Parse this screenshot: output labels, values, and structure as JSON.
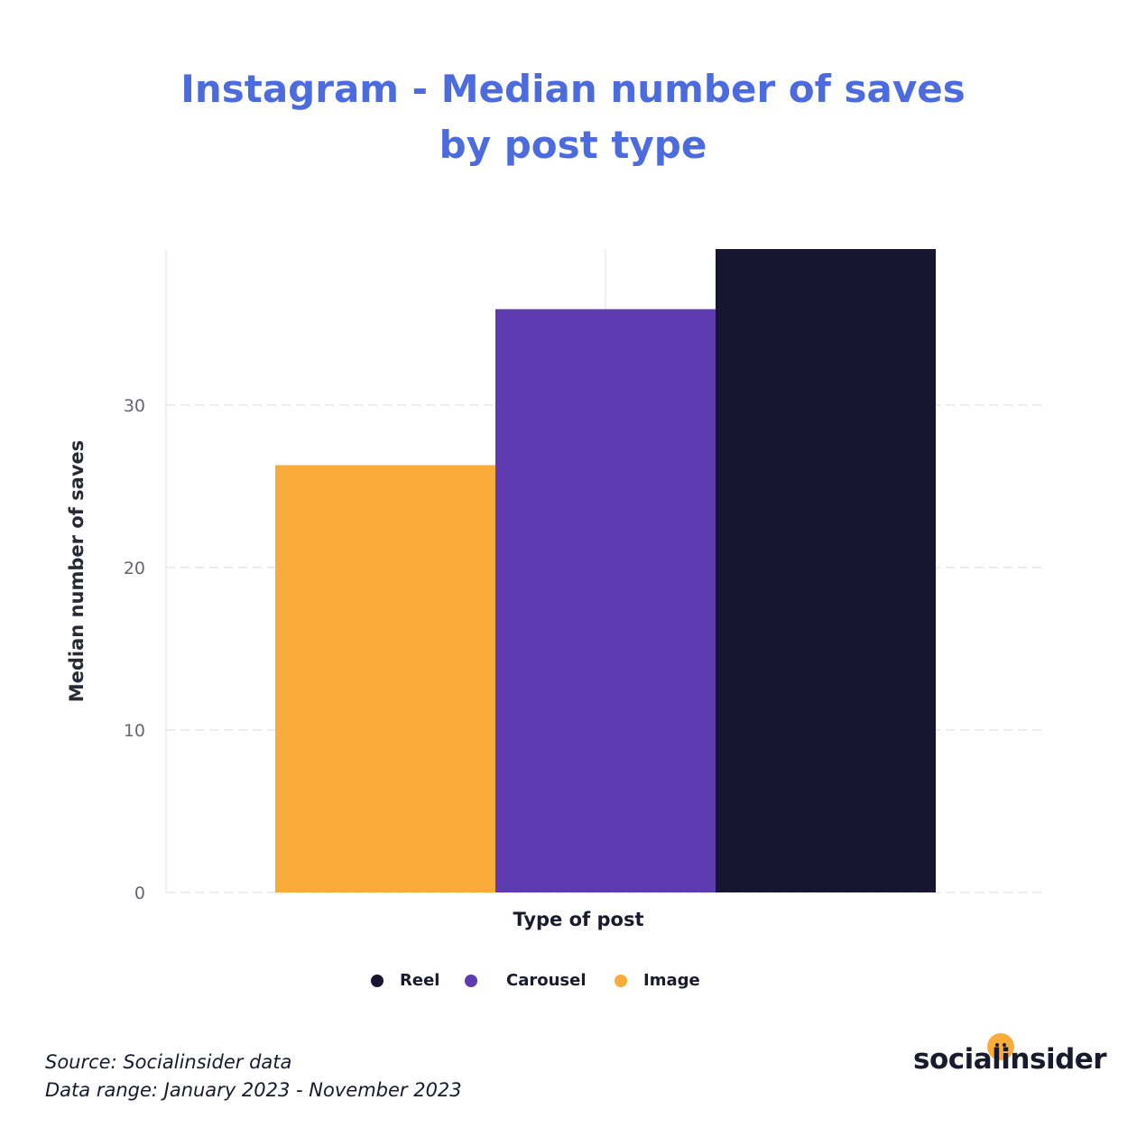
{
  "title_lines": [
    "Instagram - Median number of saves",
    "by post type"
  ],
  "chart_data": {
    "type": "bar",
    "categories": [
      "Image",
      "Carousel",
      "Reel"
    ],
    "values": [
      26.3,
      35.9,
      39.6
    ],
    "colors": [
      "#f9ac3a",
      "#5e3bb0",
      "#181530"
    ],
    "title": "Instagram - Median number of saves by post type",
    "xlabel": "Type of post",
    "ylabel": "Median number of saves",
    "ylim": [
      0,
      39.6
    ],
    "yticks": [
      0,
      10,
      20,
      30
    ],
    "grid": true,
    "legend_position": "bottom",
    "legend": [
      {
        "label": "Reel",
        "color": "#181530"
      },
      {
        "label": "Carousel",
        "color": "#5e3bb0"
      },
      {
        "label": "Image",
        "color": "#f9ac3a"
      }
    ]
  },
  "footer": {
    "source": "Source: Socialinsider data",
    "range": "Data range: January 2023 - November 2023"
  },
  "brand": {
    "name": "socialinsider",
    "accent": "#f9ac3a",
    "title_color": "#4b6bde"
  }
}
